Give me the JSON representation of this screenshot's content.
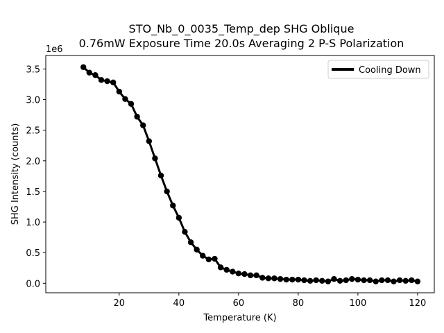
{
  "chart_data": {
    "type": "line",
    "title_line1": "STO_Nb_0_0035_Temp_dep SHG Oblique",
    "title_line2": "0.76mW Exposure Time 20.0s Averaging 2 P-S  Polarization",
    "xlabel": "Temperature (K)",
    "ylabel": "SHG Intensity (counts)",
    "y_offset_label": "1e6",
    "xlim": [
      -4.6,
      125.6
    ],
    "ylim": [
      -0.155,
      3.72
    ],
    "y_scale_note": "values in units of 1e6 counts",
    "x_ticks": [
      20,
      40,
      60,
      80,
      100,
      120
    ],
    "x_tick_labels": [
      "20",
      "40",
      "60",
      "80",
      "100",
      "120"
    ],
    "y_ticks": [
      0,
      0.5,
      1.0,
      1.5,
      2.0,
      2.5,
      3.0,
      3.5
    ],
    "y_tick_labels": [
      "0.0",
      "0.5",
      "1.0",
      "1.5",
      "2.0",
      "2.5",
      "3.0",
      "3.5"
    ],
    "grid": false,
    "legend_position": "top-right",
    "series": [
      {
        "name": "Cooling Down",
        "color": "#000000",
        "x": [
          8,
          10,
          12,
          14,
          16,
          18,
          20,
          22,
          24,
          26,
          28,
          30,
          32,
          34,
          36,
          38,
          40,
          42,
          44,
          46,
          48,
          50,
          52,
          54,
          56,
          58,
          60,
          62,
          64,
          66,
          68,
          70,
          72,
          74,
          76,
          78,
          80,
          82,
          84,
          86,
          88,
          90,
          92,
          94,
          96,
          98,
          100,
          102,
          104,
          106,
          108,
          110,
          112,
          114,
          116,
          118,
          120
        ],
        "y": [
          3.53,
          3.44,
          3.4,
          3.32,
          3.3,
          3.28,
          3.13,
          3.01,
          2.93,
          2.72,
          2.58,
          2.32,
          2.04,
          1.76,
          1.5,
          1.27,
          1.07,
          0.84,
          0.67,
          0.55,
          0.45,
          0.39,
          0.4,
          0.26,
          0.22,
          0.19,
          0.16,
          0.15,
          0.13,
          0.13,
          0.09,
          0.08,
          0.08,
          0.07,
          0.06,
          0.06,
          0.06,
          0.05,
          0.04,
          0.05,
          0.04,
          0.03,
          0.07,
          0.04,
          0.05,
          0.07,
          0.06,
          0.05,
          0.05,
          0.03,
          0.05,
          0.05,
          0.03,
          0.05,
          0.04,
          0.05,
          0.03
        ]
      }
    ]
  }
}
